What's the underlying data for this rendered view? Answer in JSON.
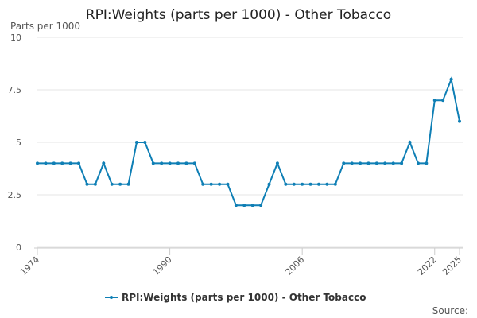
{
  "chart_data": {
    "type": "line",
    "title": "RPI:Weights (parts per 1000) - Other Tobacco",
    "y_label": "Parts per 1000",
    "source": "Source:",
    "x": [
      1974,
      1975,
      1976,
      1977,
      1978,
      1979,
      1980,
      1981,
      1982,
      1983,
      1984,
      1985,
      1986,
      1987,
      1988,
      1989,
      1990,
      1991,
      1992,
      1993,
      1994,
      1995,
      1996,
      1997,
      1998,
      1999,
      2000,
      2001,
      2002,
      2003,
      2004,
      2005,
      2006,
      2007,
      2008,
      2009,
      2010,
      2011,
      2012,
      2013,
      2014,
      2015,
      2016,
      2017,
      2018,
      2019,
      2020,
      2021,
      2022,
      2023,
      2024,
      2025
    ],
    "series": [
      {
        "name": "RPI:Weights (parts per 1000) - Other Tobacco",
        "color": "#0f7fb5",
        "values": [
          4,
          4,
          4,
          4,
          4,
          4,
          3,
          3,
          4,
          3,
          3,
          3,
          5,
          5,
          4,
          4,
          4,
          4,
          4,
          4,
          3,
          3,
          3,
          3,
          2,
          2,
          2,
          2,
          3,
          4,
          3,
          3,
          3,
          3,
          3,
          3,
          3,
          4,
          4,
          4,
          4,
          4,
          4,
          4,
          4,
          5,
          4,
          4,
          7,
          7,
          8,
          6
        ]
      }
    ],
    "xlim": [
      1974,
      2025
    ],
    "xticks": [
      1974,
      1990,
      2006,
      2022,
      2025
    ],
    "ylim": [
      0,
      10
    ],
    "yticks": [
      0,
      2.5,
      5,
      7.5,
      10
    ],
    "grid": true,
    "legend": "bottom"
  }
}
